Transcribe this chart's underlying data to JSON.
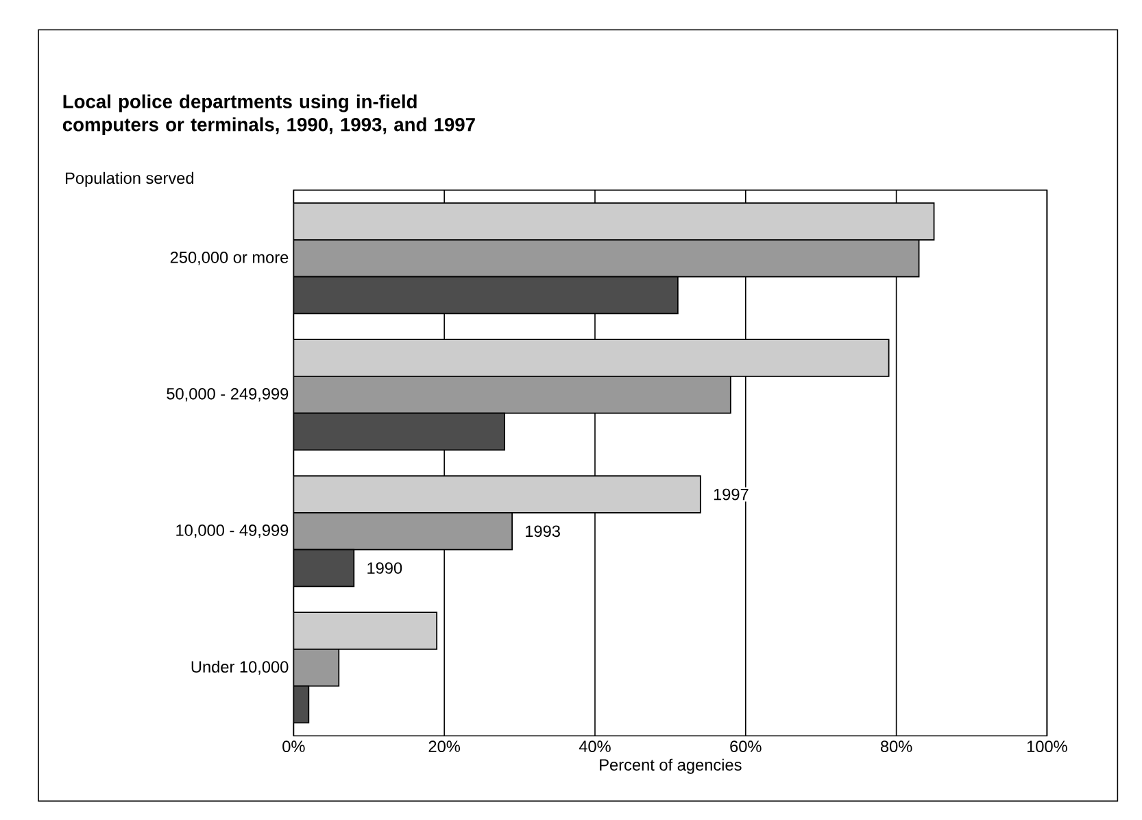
{
  "chart_data": {
    "type": "bar",
    "orientation": "horizontal",
    "title": "Local police departments using in-field computers or terminals, 1990, 1993, and 1997",
    "ylabel": "Population served",
    "xlabel": "Percent of agencies",
    "categories": [
      "250,000 or more",
      "50,000 - 249,999",
      "10,000 - 49,999",
      "Under 10,000"
    ],
    "series": [
      {
        "name": "1997",
        "color": "#cccccc",
        "values": [
          85,
          79,
          54,
          19
        ]
      },
      {
        "name": "1993",
        "color": "#999999",
        "values": [
          83,
          58,
          29,
          6
        ]
      },
      {
        "name": "1990",
        "color": "#4d4d4d",
        "values": [
          51,
          28,
          8,
          2
        ]
      }
    ],
    "xlim": [
      0,
      100
    ],
    "xticks": [
      {
        "value": 0,
        "label": "0%"
      },
      {
        "value": 20,
        "label": "20%"
      },
      {
        "value": 40,
        "label": "40%"
      },
      {
        "value": 60,
        "label": "60%"
      },
      {
        "value": 80,
        "label": "80%"
      },
      {
        "value": 100,
        "label": "100%"
      }
    ],
    "grid": "x"
  }
}
